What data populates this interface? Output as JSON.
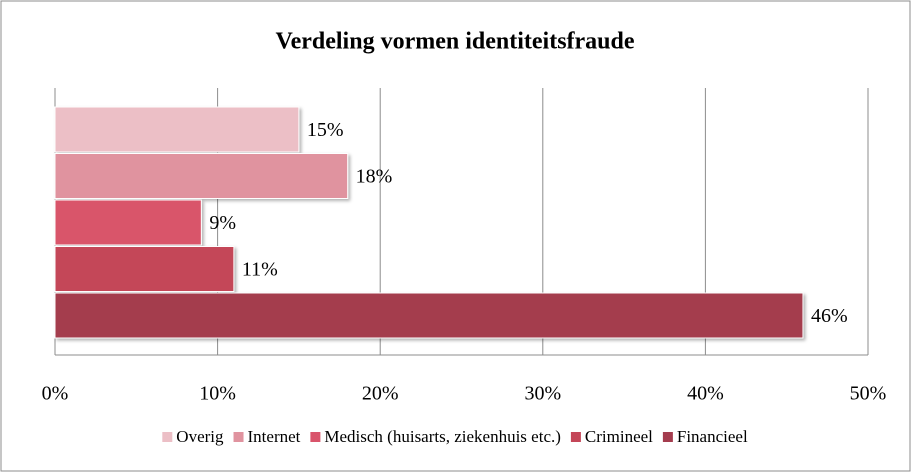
{
  "chart_data": {
    "type": "bar",
    "orientation": "horizontal",
    "title": "Verdeling vormen identiteitsfraude",
    "categories": [
      null
    ],
    "series": [
      {
        "name": "Overig",
        "color": "#ecbfc6",
        "values": [
          15
        ],
        "value_labels": [
          "15%"
        ]
      },
      {
        "name": "Internet",
        "color": "#e0939f",
        "values": [
          18
        ],
        "value_labels": [
          "18%"
        ]
      },
      {
        "name": "Medisch (huisarts, ziekenhuis etc.)",
        "color": "#d9546b",
        "values": [
          9
        ],
        "value_labels": [
          "9%"
        ]
      },
      {
        "name": "Crimineel",
        "color": "#c44658",
        "values": [
          11
        ],
        "value_labels": [
          "11%"
        ]
      },
      {
        "name": "Financieel",
        "color": "#a43c4e",
        "values": [
          46
        ],
        "value_labels": [
          "46%"
        ]
      }
    ],
    "xlim": [
      0,
      50
    ],
    "xticks": [
      {
        "value": 0,
        "label": "0%"
      },
      {
        "value": 10,
        "label": "10%"
      },
      {
        "value": 20,
        "label": "20%"
      },
      {
        "value": 30,
        "label": "30%"
      },
      {
        "value": 40,
        "label": "40%"
      },
      {
        "value": 50,
        "label": "50%"
      }
    ],
    "grid": true,
    "legend": "bottom"
  }
}
